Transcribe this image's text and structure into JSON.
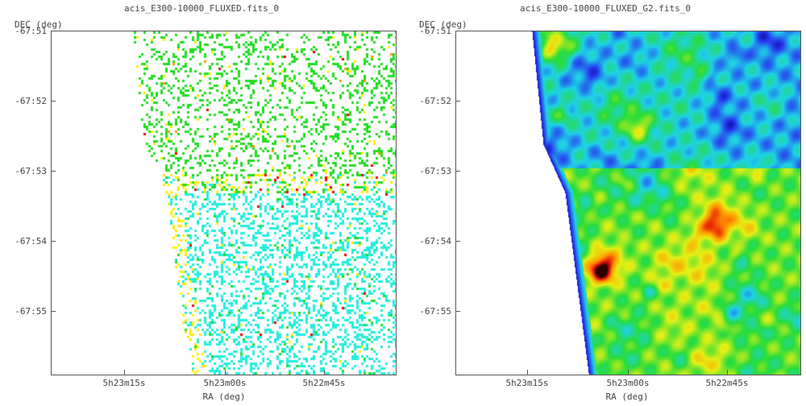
{
  "panels": [
    {
      "title": "acis_E300-10000_FLUXED.fits_0",
      "ylabel": "DEC (deg)",
      "xlabel": "RA (deg)",
      "yticks": [
        "-67:51",
        "-67:52",
        "-67:53",
        "-67:54",
        "-67:55"
      ],
      "xticks": [
        "5h23m15s",
        "5h23m00s",
        "5h22m45s"
      ],
      "style": "sparse-pixels"
    },
    {
      "title": "acis_E300-10000_FLUXED_G2.fits_0",
      "ylabel": "DEC (deg)",
      "xlabel": "RA (deg)",
      "yticks": [
        "-67:51",
        "-67:52",
        "-67:53",
        "-67:54",
        "-67:55"
      ],
      "xticks": [
        "5h23m15s",
        "5h23m00s",
        "5h22m45s"
      ],
      "style": "smoothed-heatmap"
    }
  ],
  "colors": {
    "green": "#22dd22",
    "cyan": "#22eedd",
    "yellow": "#ffee00",
    "orange": "#ff9900",
    "red": "#ee0000",
    "blue": "#2233ee",
    "darkblue": "#000088"
  }
}
